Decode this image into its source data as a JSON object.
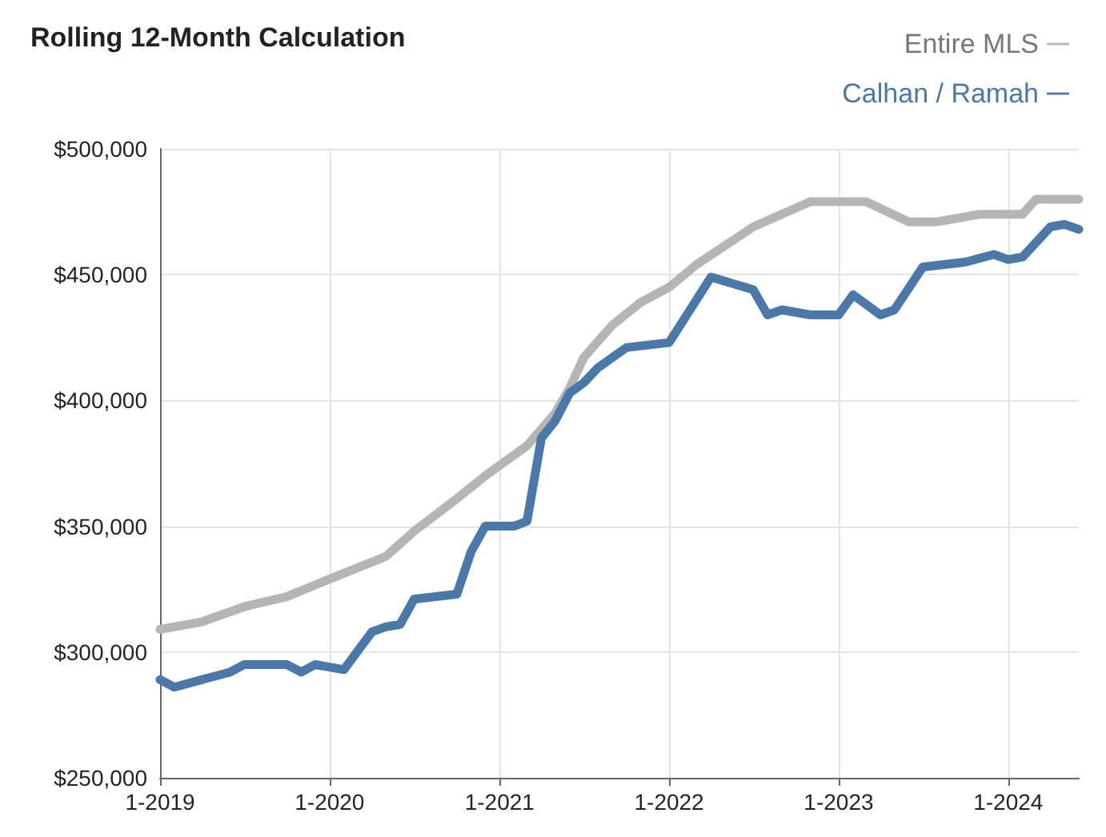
{
  "chart_data": {
    "type": "line",
    "title": "Rolling 12-Month Calculation",
    "series": [
      {
        "name": "Entire MLS",
        "color": "#b5b5b5",
        "x": [
          "2019-01",
          "2019-04",
          "2019-07",
          "2019-10",
          "2020-01",
          "2020-05",
          "2020-07",
          "2020-10",
          "2020-12",
          "2021-03",
          "2021-05",
          "2021-06",
          "2021-07",
          "2021-09",
          "2021-11",
          "2022-01",
          "2022-03",
          "2022-07",
          "2022-11",
          "2023-03",
          "2023-06",
          "2023-08",
          "2023-11",
          "2024-02",
          "2024-03",
          "2024-06"
        ],
        "values": [
          309000,
          312000,
          318000,
          322000,
          329000,
          338000,
          348000,
          361000,
          370000,
          382000,
          395000,
          405000,
          417000,
          430000,
          439000,
          445000,
          454000,
          469000,
          479000,
          479000,
          471000,
          471000,
          474000,
          474000,
          480000,
          480000
        ]
      },
      {
        "name": "Calhan / Ramah",
        "color": "#4a78a8",
        "x": [
          "2019-01",
          "2019-02",
          "2019-04",
          "2019-06",
          "2019-07",
          "2019-10",
          "2019-11",
          "2019-12",
          "2020-02",
          "2020-04",
          "2020-05",
          "2020-06",
          "2020-07",
          "2020-10",
          "2020-11",
          "2020-12",
          "2021-02",
          "2021-03",
          "2021-04",
          "2021-05",
          "2021-06",
          "2021-07",
          "2021-08",
          "2021-10",
          "2022-01",
          "2022-04",
          "2022-07",
          "2022-08",
          "2022-09",
          "2022-11",
          "2023-01",
          "2023-02",
          "2023-04",
          "2023-05",
          "2023-07",
          "2023-10",
          "2023-12",
          "2024-01",
          "2024-02",
          "2024-04",
          "2024-05",
          "2024-06"
        ],
        "values": [
          289000,
          286000,
          289000,
          292000,
          295000,
          295000,
          292000,
          295000,
          293000,
          308000,
          310000,
          311000,
          321000,
          323000,
          340000,
          350000,
          350000,
          352000,
          385000,
          392000,
          403000,
          407000,
          413000,
          421000,
          423000,
          449000,
          444000,
          434000,
          436000,
          434000,
          434000,
          442000,
          434000,
          436000,
          453000,
          455000,
          458000,
          456000,
          457000,
          469000,
          470000,
          468000
        ]
      }
    ],
    "xlim": [
      "2019-01",
      "2024-06"
    ],
    "xticks": [
      {
        "value": "2019-01",
        "label": "1-2019"
      },
      {
        "value": "2020-01",
        "label": "1-2020"
      },
      {
        "value": "2021-01",
        "label": "1-2021"
      },
      {
        "value": "2022-01",
        "label": "1-2022"
      },
      {
        "value": "2023-01",
        "label": "1-2023"
      },
      {
        "value": "2024-01",
        "label": "1-2024"
      }
    ],
    "ylim": [
      250000,
      500000
    ],
    "yticks": [
      {
        "value": 250000,
        "label": "$250,000"
      },
      {
        "value": 300000,
        "label": "$300,000"
      },
      {
        "value": 350000,
        "label": "$350,000"
      },
      {
        "value": 400000,
        "label": "$400,000"
      },
      {
        "value": 450000,
        "label": "$450,000"
      },
      {
        "value": 500000,
        "label": "$500,000"
      }
    ],
    "grid": true,
    "legend": "top right",
    "marker": "none",
    "line_style": "solid"
  }
}
